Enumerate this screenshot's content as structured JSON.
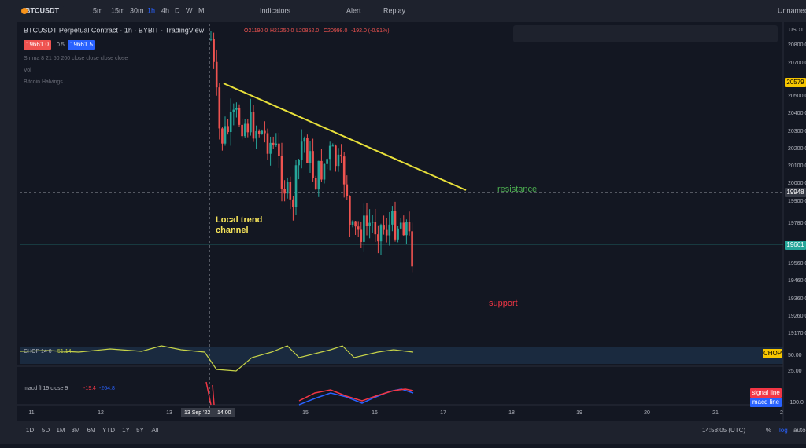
{
  "header": {
    "symbol": "BTCUSDT",
    "intervals": [
      "5m",
      "15m",
      "30m",
      "1h",
      "4h",
      "D",
      "W",
      "M"
    ],
    "indicators": "Indicators",
    "alert": "Alert",
    "replay": "Replay",
    "layout": "Unnamed"
  },
  "legend": {
    "title": "BTCUSDT Perpetual Contract · 1h · BYBIT · TradingView",
    "ohlc": [
      "O21190.0",
      "H21250.0",
      "L20852.0",
      "C20998.0",
      "-192.0 (-0.91%)"
    ],
    "sell": "19661.0",
    "spread": "0.5",
    "buy": "19661.5",
    "studies": [
      "Smma 8 21 50 200 close close close close",
      "Vol",
      "Bitcoin Halvings"
    ]
  },
  "price_axis": {
    "currency": "USDT",
    "labels": [
      "20800.0",
      "20700.0",
      "20500.0",
      "20400.0",
      "20300.0",
      "20200.0",
      "20100.0",
      "20000.0",
      "19900.0",
      "19780.0",
      "19560.0",
      "19460.0",
      "19360.0",
      "19260.0",
      "19170.0"
    ],
    "tags": [
      "20579",
      "19948",
      "19661"
    ]
  },
  "annotations": {
    "resistance": "resistance",
    "channel": [
      "Local trend",
      "channel"
    ],
    "support": "support"
  },
  "chop": {
    "name": "CHOP 14 0",
    "value": "51.14",
    "axis": [
      "50.00",
      "25.00"
    ],
    "tag": "CHOP"
  },
  "macd": {
    "name": "macd fl 19 close 9",
    "values": [
      "-19.4",
      "-264.8"
    ],
    "axis": [
      "-100.0"
    ],
    "tags": [
      "signal line",
      "macd line"
    ]
  },
  "time_axis": {
    "labels": [
      "11",
      "12",
      "13",
      "15",
      "16",
      "17",
      "18",
      "19",
      "20",
      "21",
      "2"
    ],
    "crosshair": [
      "13 Sep '22",
      "14:00"
    ]
  },
  "footer": {
    "ranges": [
      "1D",
      "5D",
      "1M",
      "3M",
      "6M",
      "YTD",
      "1Y",
      "5Y",
      "All"
    ],
    "clock": "14:58:05 (UTC)",
    "percent": "%",
    "log": "log",
    "auto": "auto"
  }
}
